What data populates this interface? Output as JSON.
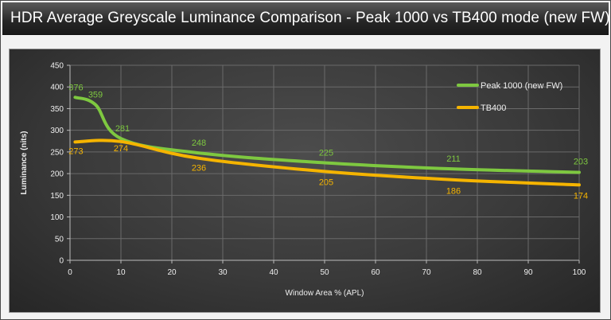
{
  "title": "HDR Average Greyscale Luminance Comparison - Peak 1000 vs TB400 mode (new FW)",
  "chart_data": {
    "type": "line",
    "xlabel": "Window Area % (APL)",
    "ylabel": "Luminance (nits)",
    "xlim": [
      0,
      100
    ],
    "ylim": [
      0,
      450
    ],
    "x_ticks": [
      "0",
      "10",
      "20",
      "30",
      "40",
      "50",
      "60",
      "70",
      "80",
      "90",
      "100"
    ],
    "y_ticks": [
      "0",
      "50",
      "100",
      "150",
      "200",
      "250",
      "300",
      "350",
      "400",
      "450"
    ],
    "grid": true,
    "legend_position": "top-right",
    "series": [
      {
        "name": "Peak 1000 (new FW)",
        "color": "#7ec840",
        "x": [
          1,
          5,
          10,
          25,
          50,
          75,
          100
        ],
        "y": [
          376,
          359,
          281,
          248,
          225,
          211,
          203
        ],
        "labels": [
          "376",
          "359",
          "281",
          "248",
          "225",
          "211",
          "203"
        ]
      },
      {
        "name": "TB400",
        "color": "#f5b400",
        "x": [
          1,
          10,
          25,
          50,
          75,
          100
        ],
        "y": [
          273,
          274,
          236,
          205,
          186,
          174
        ],
        "labels": [
          "273",
          "274",
          "236",
          "205",
          "186",
          "174"
        ]
      }
    ]
  }
}
